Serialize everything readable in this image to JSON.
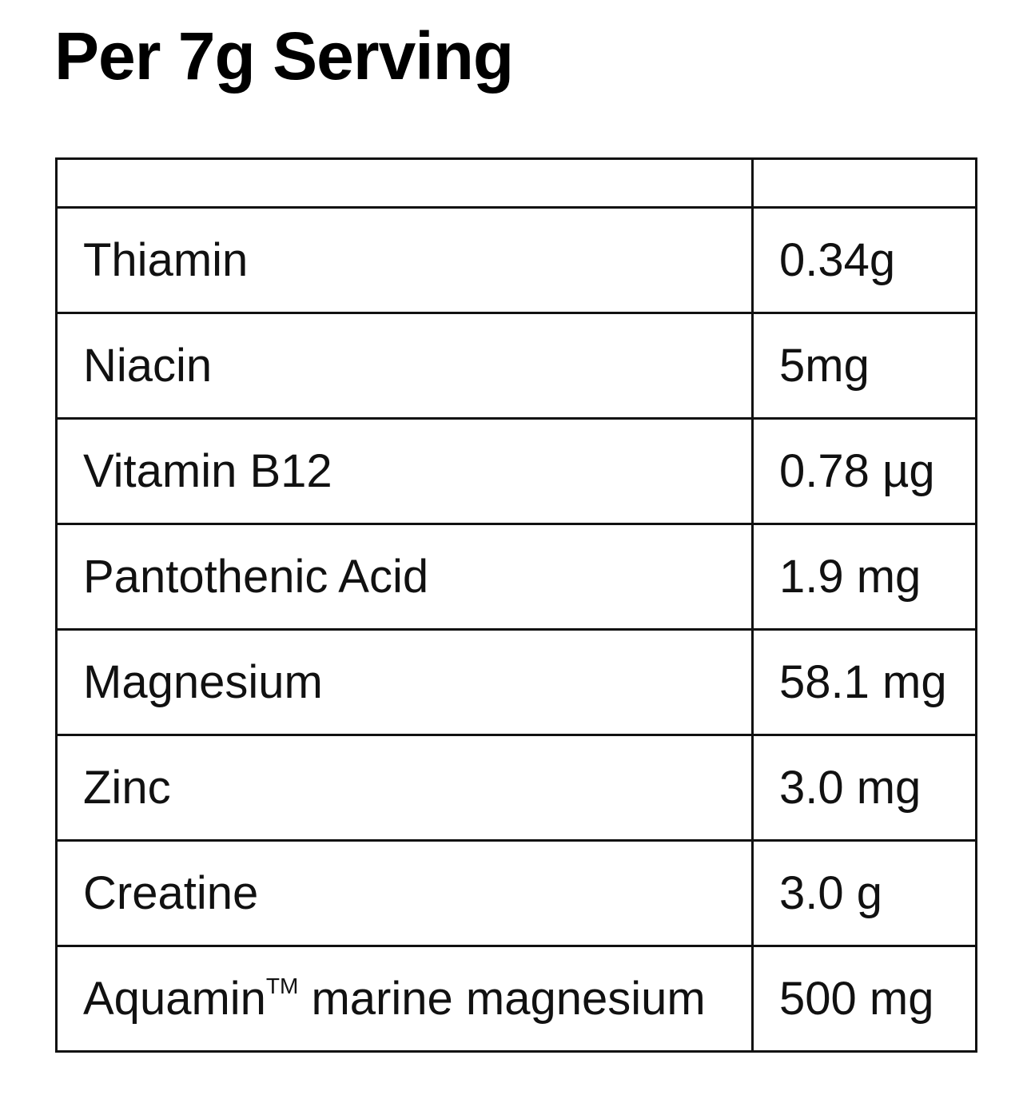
{
  "title": "Per 7g Serving",
  "table": {
    "header": [
      "",
      ""
    ],
    "rows": [
      {
        "name": "Thiamin",
        "amount": "0.34g"
      },
      {
        "name": "Niacin",
        "amount": "5mg"
      },
      {
        "name": "Vitamin B12",
        "amount": "0.78 µg"
      },
      {
        "name": "Pantothenic Acid",
        "amount": "1.9 mg"
      },
      {
        "name": "Magnesium",
        "amount": "58.1 mg"
      },
      {
        "name": "Zinc",
        "amount": "3.0 mg"
      },
      {
        "name": "Creatine",
        "amount": "3.0 g"
      },
      {
        "name": "Aquamin",
        "trademark": "TM",
        "name_rest": " marine magnesium",
        "amount": "500 mg"
      }
    ]
  }
}
